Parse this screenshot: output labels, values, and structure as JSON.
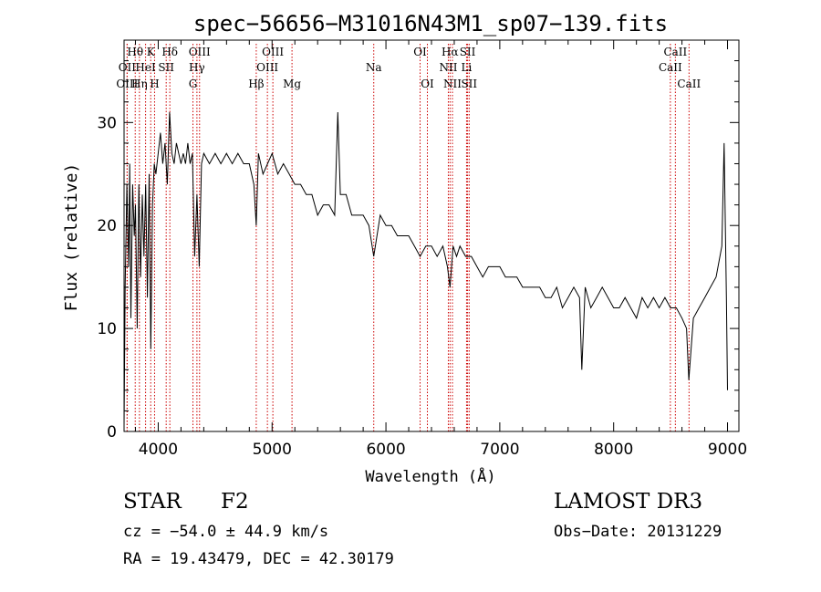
{
  "chart_data": {
    "type": "line",
    "title": "spec−56656−M31016N43M1_sp07−139.fits",
    "xlabel": "Wavelength (Å)",
    "ylabel": "Flux (relative)",
    "xlim": [
      3700,
      9100
    ],
    "ylim": [
      0,
      38
    ],
    "x_ticks": [
      4000,
      5000,
      6000,
      7000,
      8000,
      9000
    ],
    "x_tick_labels": [
      "4000",
      "5000",
      "6000",
      "7000",
      "8000",
      "9000"
    ],
    "y_ticks": [
      0,
      10,
      20,
      30
    ],
    "y_tick_labels": [
      "0",
      "10",
      "20",
      "30"
    ],
    "grid": false,
    "series": [
      {
        "name": "spectrum",
        "x": [
          3700,
          3710,
          3725,
          3740,
          3750,
          3760,
          3775,
          3790,
          3800,
          3815,
          3830,
          3845,
          3860,
          3875,
          3890,
          3905,
          3920,
          3935,
          3950,
          3965,
          3980,
          4000,
          4020,
          4040,
          4060,
          4080,
          4100,
          4120,
          4140,
          4160,
          4180,
          4200,
          4220,
          4240,
          4260,
          4280,
          4300,
          4320,
          4340,
          4360,
          4380,
          4400,
          4450,
          4500,
          4550,
          4600,
          4650,
          4700,
          4750,
          4800,
          4840,
          4861,
          4880,
          4920,
          4960,
          5000,
          5050,
          5100,
          5150,
          5200,
          5250,
          5300,
          5350,
          5400,
          5450,
          5500,
          5550,
          5577,
          5600,
          5650,
          5700,
          5750,
          5800,
          5850,
          5893,
          5950,
          6000,
          6050,
          6100,
          6150,
          6200,
          6250,
          6300,
          6350,
          6400,
          6450,
          6500,
          6540,
          6563,
          6590,
          6620,
          6650,
          6700,
          6750,
          6800,
          6850,
          6900,
          6950,
          7000,
          7050,
          7100,
          7150,
          7200,
          7250,
          7300,
          7350,
          7400,
          7450,
          7500,
          7550,
          7600,
          7650,
          7700,
          7720,
          7750,
          7800,
          7850,
          7900,
          7950,
          8000,
          8050,
          8100,
          8150,
          8200,
          8250,
          8300,
          8350,
          8400,
          8450,
          8500,
          8550,
          8600,
          8640,
          8660,
          8700,
          8750,
          8800,
          8850,
          8900,
          8950,
          8970,
          8990,
          9000
        ],
        "values": [
          0.5,
          14,
          24,
          16,
          26,
          11,
          24,
          19,
          22,
          10,
          24,
          15,
          23,
          17,
          24,
          13,
          25,
          8,
          22,
          26,
          25,
          27,
          29,
          26,
          28,
          24,
          31,
          27,
          26,
          28,
          27,
          26,
          27,
          26,
          28,
          26,
          27,
          17,
          23,
          16,
          26,
          27,
          26,
          27,
          26,
          27,
          26,
          27,
          26,
          26,
          24,
          20,
          27,
          25,
          26,
          27,
          25,
          26,
          25,
          24,
          24,
          23,
          23,
          21,
          22,
          22,
          21,
          31,
          23,
          23,
          21,
          21,
          21,
          20,
          17,
          21,
          20,
          20,
          19,
          19,
          19,
          18,
          17,
          18,
          18,
          17,
          18,
          16,
          14,
          18,
          17,
          18,
          17,
          17,
          16,
          15,
          16,
          16,
          16,
          15,
          15,
          15,
          14,
          14,
          14,
          14,
          13,
          13,
          14,
          12,
          13,
          14,
          13,
          6,
          14,
          12,
          13,
          14,
          13,
          12,
          12,
          13,
          12,
          11,
          13,
          12,
          13,
          12,
          13,
          12,
          12,
          11,
          10,
          5,
          11,
          12,
          13,
          14,
          15,
          18,
          28,
          13,
          4
        ]
      }
    ],
    "spectral_lines": [
      {
        "label": "Hθ",
        "x": 3798,
        "row": 0
      },
      {
        "label": "OII",
        "x": 3727,
        "row": 1
      },
      {
        "label": "OIII",
        "x": 3727,
        "row": 2
      },
      {
        "label": "K",
        "x": 3934,
        "row": 0
      },
      {
        "label": "HeI",
        "x": 3889,
        "row": 1
      },
      {
        "label": "Hη",
        "x": 3835,
        "row": 2
      },
      {
        "label": "SII",
        "x": 4070,
        "row": 1
      },
      {
        "label": "H",
        "x": 3968,
        "row": 2
      },
      {
        "label": "Hδ",
        "x": 4102,
        "row": 0
      },
      {
        "label": "OIII",
        "x": 4363,
        "row": 0
      },
      {
        "label": "Hγ",
        "x": 4340,
        "row": 1
      },
      {
        "label": "G",
        "x": 4305,
        "row": 2
      },
      {
        "label": "OIII",
        "x": 5007,
        "row": 0
      },
      {
        "label": "OIII",
        "x": 4959,
        "row": 1
      },
      {
        "label": "Hβ",
        "x": 4861,
        "row": 2
      },
      {
        "label": "Mg",
        "x": 5175,
        "row": 2
      },
      {
        "label": "Na",
        "x": 5893,
        "row": 1
      },
      {
        "label": "OI",
        "x": 6300,
        "row": 0
      },
      {
        "label": "OI",
        "x": 6364,
        "row": 2
      },
      {
        "label": "Hα",
        "x": 6563,
        "row": 0
      },
      {
        "label": "NII",
        "x": 6548,
        "row": 1
      },
      {
        "label": "NII",
        "x": 6584,
        "row": 2
      },
      {
        "label": "SII",
        "x": 6717,
        "row": 0
      },
      {
        "label": "Li",
        "x": 6708,
        "row": 1
      },
      {
        "label": "SII",
        "x": 6731,
        "row": 2
      },
      {
        "label": "CaII",
        "x": 8542,
        "row": 0
      },
      {
        "label": "CaII",
        "x": 8498,
        "row": 1
      },
      {
        "label": "CaII",
        "x": 8662,
        "row": 2
      }
    ]
  },
  "info": {
    "object_class": "STAR",
    "subclass": "F2",
    "survey": "LAMOST DR3",
    "cz": "cz = −54.0 ± 44.9 km/s",
    "obs_date": "Obs−Date: 20131229",
    "coords": "RA =  19.43479, DEC =  42.30179"
  },
  "colors": {
    "spectrum": "#000000",
    "line_marker": "#cc0000",
    "axes": "#000000"
  }
}
